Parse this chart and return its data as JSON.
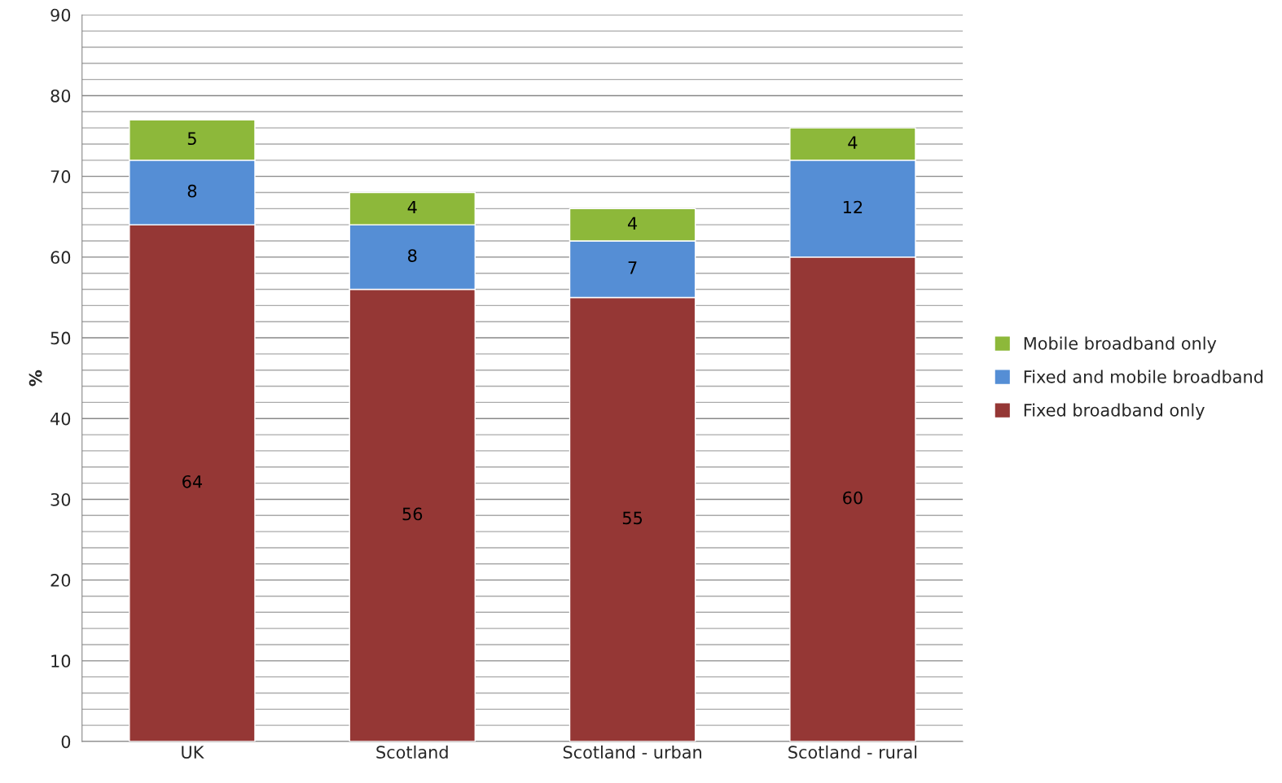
{
  "chart_data": {
    "type": "bar",
    "stacked": true,
    "ylabel": "%",
    "categories": [
      "UK",
      "Scotland",
      "Scotland - urban",
      "Scotland - rural"
    ],
    "series": [
      {
        "name": "Fixed broadband only",
        "color": "#953735",
        "values": [
          64,
          56,
          55,
          60
        ]
      },
      {
        "name": "Fixed and mobile broadband",
        "color": "#558ed5",
        "values": [
          8,
          8,
          7,
          12
        ]
      },
      {
        "name": "Mobile broadband only",
        "color": "#8db83a",
        "values": [
          5,
          4,
          4,
          4
        ]
      }
    ],
    "ylim": [
      0,
      90
    ],
    "yticks": [
      0,
      {
        "value": 2,
        "label": null
      },
      {
        "value": 4,
        "label": null
      },
      {
        "value": 6,
        "label": null
      },
      {
        "value": 8,
        "label": null
      },
      10,
      {
        "value": 12,
        "label": null
      },
      {
        "value": 14,
        "label": null
      },
      {
        "value": 16,
        "label": null
      },
      {
        "value": 18,
        "label": null
      },
      20,
      {
        "value": 22,
        "label": null
      },
      {
        "value": 24,
        "label": null
      },
      {
        "value": 26,
        "label": null
      },
      {
        "value": 28,
        "label": null
      },
      30,
      {
        "value": 32,
        "label": null
      },
      {
        "value": 34,
        "label": null
      },
      {
        "value": 36,
        "label": null
      },
      {
        "value": 38,
        "label": null
      },
      40,
      {
        "value": 42,
        "label": null
      },
      {
        "value": 44,
        "label": null
      },
      {
        "value": 46,
        "label": null
      },
      {
        "value": 48,
        "label": null
      },
      50,
      {
        "value": 52,
        "label": null
      },
      {
        "value": 54,
        "label": null
      },
      {
        "value": 56,
        "label": null
      },
      {
        "value": 58,
        "label": null
      },
      60,
      {
        "value": 62,
        "label": null
      },
      {
        "value": 64,
        "label": null
      },
      {
        "value": 66,
        "label": null
      },
      {
        "value": 68,
        "label": null
      },
      70,
      {
        "value": 72,
        "label": null
      },
      {
        "value": 74,
        "label": null
      },
      {
        "value": 76,
        "label": null
      },
      {
        "value": 78,
        "label": null
      },
      80,
      {
        "value": 82,
        "label": null
      },
      {
        "value": 84,
        "label": null
      },
      {
        "value": 86,
        "label": null
      },
      {
        "value": 88,
        "label": null
      },
      90
    ],
    "grid": "y",
    "legend": "right",
    "data_labels": true
  }
}
